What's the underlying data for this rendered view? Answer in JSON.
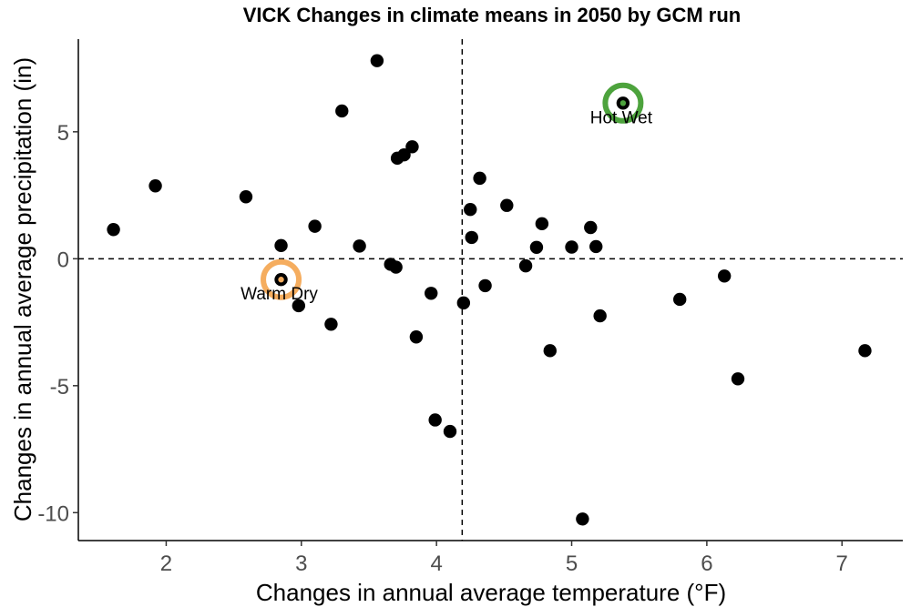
{
  "chart_data": {
    "type": "scatter",
    "title": "VICK Changes in climate means in 2050 by GCM run",
    "xlabel": "Changes in annual average temperature (°F)",
    "ylabel": "Changes in annual average precipitation (in)",
    "xlim": [
      1.35,
      7.45
    ],
    "ylim": [
      -11.1,
      8.65
    ],
    "x_ticks": [
      2,
      3,
      4,
      5,
      6,
      7
    ],
    "y_ticks": [
      -10,
      -5,
      0,
      5
    ],
    "x_tick_labels": [
      "2",
      "3",
      "4",
      "5",
      "6",
      "7"
    ],
    "y_tick_labels": [
      "-10",
      "-5",
      "0",
      "5"
    ],
    "reference_lines": {
      "x": 4.19,
      "y": 0
    },
    "grid": false,
    "series": [
      {
        "points": [
          [
            1.61,
            1.15
          ],
          [
            1.92,
            2.87
          ],
          [
            2.59,
            2.44
          ],
          [
            2.85,
            0.52
          ],
          [
            2.98,
            -1.85
          ],
          [
            3.1,
            1.28
          ],
          [
            3.22,
            -2.58
          ],
          [
            3.3,
            5.82
          ],
          [
            3.43,
            0.5
          ],
          [
            3.56,
            7.8
          ],
          [
            3.66,
            -0.22
          ],
          [
            3.7,
            -0.33
          ],
          [
            3.71,
            3.96
          ],
          [
            3.76,
            4.09
          ],
          [
            3.82,
            4.41
          ],
          [
            3.85,
            -3.08
          ],
          [
            3.96,
            -1.36
          ],
          [
            3.99,
            -6.35
          ],
          [
            4.1,
            -6.8
          ],
          [
            4.2,
            -1.74
          ],
          [
            4.25,
            1.94
          ],
          [
            4.26,
            0.84
          ],
          [
            4.32,
            3.17
          ],
          [
            4.36,
            -1.06
          ],
          [
            4.52,
            2.1
          ],
          [
            4.66,
            -0.28
          ],
          [
            4.74,
            0.45
          ],
          [
            4.78,
            1.38
          ],
          [
            4.84,
            -3.62
          ],
          [
            5.0,
            0.46
          ],
          [
            5.08,
            -10.25
          ],
          [
            5.14,
            1.23
          ],
          [
            5.18,
            0.48
          ],
          [
            5.21,
            -2.25
          ],
          [
            5.8,
            -1.6
          ],
          [
            6.13,
            -0.68
          ],
          [
            6.23,
            -4.73
          ],
          [
            7.17,
            -3.62
          ]
        ],
        "color": "#000000"
      }
    ],
    "highlights": [
      {
        "label": "Warm Dry",
        "x": 2.85,
        "y": -0.82,
        "ring_color": "#f5ad5f"
      },
      {
        "label": "Hot Wet",
        "x": 5.38,
        "y": 6.13,
        "ring_color": "#4da33d"
      }
    ]
  }
}
